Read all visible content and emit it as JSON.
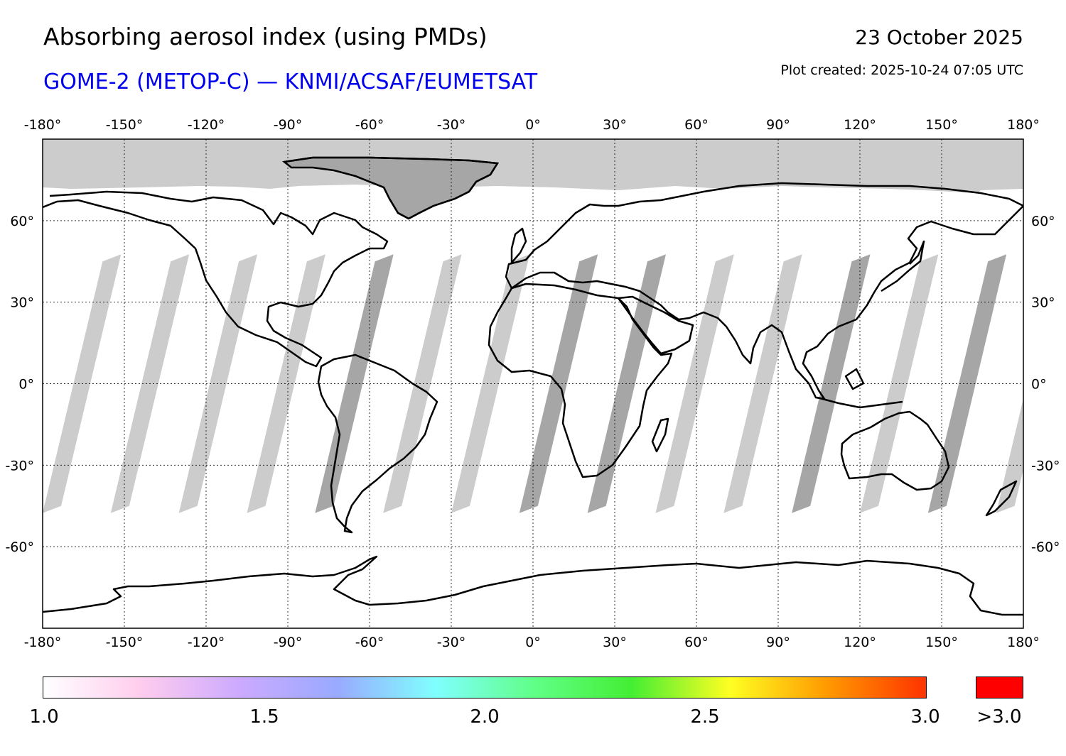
{
  "header": {
    "title": "Absorbing aerosol index (using PMDs)",
    "subtitle": "GOME-2 (METOP-C) — KNMI/ACSAF/EUMETSAT",
    "date": "23 October 2025",
    "created": "Plot created: 2025-10-24 07:05 UTC"
  },
  "map": {
    "lon_ticks": [
      "-180°",
      "-150°",
      "-120°",
      "-90°",
      "-60°",
      "-30°",
      "0°",
      "30°",
      "60°",
      "90°",
      "120°",
      "150°",
      "180°"
    ],
    "lat_ticks": [
      "60°",
      "30°",
      "0°",
      "-30°",
      "-60°"
    ],
    "lon_values": [
      -180,
      -150,
      -120,
      -90,
      -60,
      -30,
      0,
      30,
      60,
      90,
      120,
      150,
      180
    ],
    "lat_values": [
      60,
      30,
      0,
      -30,
      -60
    ],
    "lon_range": [
      -180,
      180
    ],
    "lat_range": [
      -90,
      90
    ],
    "nodata_color": "#cccccc",
    "nodata_land_color": "#a6a6a6"
  },
  "colorbar": {
    "labels": [
      "1.0",
      "1.5",
      "2.0",
      "2.5",
      "3.0"
    ],
    "values": [
      1.0,
      1.5,
      2.0,
      2.5,
      3.0
    ],
    "overflow_label": ">3.0",
    "overflow_color": "#ff0000",
    "stops": [
      "#ffffff",
      "#ffccee",
      "#ccaaff",
      "#99aaff",
      "#80ffff",
      "#60ff88",
      "#44ee33",
      "#ffff22",
      "#ff9900",
      "#ff3300"
    ]
  }
}
